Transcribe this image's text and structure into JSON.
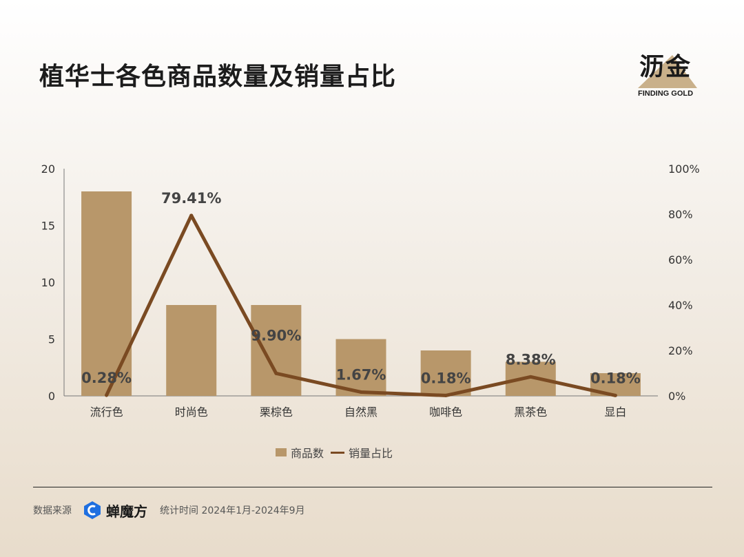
{
  "header": {
    "title": "植华士各色商品数量及销量占比",
    "logo_cn": "沥金",
    "logo_en": "FINDING GOLD"
  },
  "chart_data": {
    "type": "bar",
    "categories": [
      "流行色",
      "时尚色",
      "栗棕色",
      "自然黑",
      "咖啡色",
      "黑茶色",
      "显白"
    ],
    "series": [
      {
        "name": "商品数",
        "type": "bar",
        "axis": "left",
        "values": [
          18,
          8,
          8,
          5,
          4,
          3,
          2
        ]
      },
      {
        "name": "销量占比",
        "type": "line",
        "axis": "right",
        "values": [
          0.28,
          79.41,
          9.9,
          1.67,
          0.18,
          8.38,
          0.18
        ]
      }
    ],
    "data_labels": [
      "0.28%",
      "79.41%",
      "9.90%",
      "1.67%",
      "0.18%",
      "8.38%",
      "0.18%"
    ],
    "y_left": {
      "min": 0,
      "max": 20,
      "ticks": [
        "0",
        "5",
        "10",
        "15",
        "20"
      ]
    },
    "y_right": {
      "min": 0,
      "max": 100,
      "ticks": [
        "0%",
        "20%",
        "40%",
        "60%",
        "80%",
        "100%"
      ]
    },
    "legend_position": "bottom",
    "grid": false,
    "colors": {
      "bar": "#b8976a",
      "line": "#7a4a22"
    }
  },
  "footer": {
    "source_label": "数据来源",
    "brand": "蝉魔方",
    "period": "统计时间 2024年1月-2024年9月"
  }
}
